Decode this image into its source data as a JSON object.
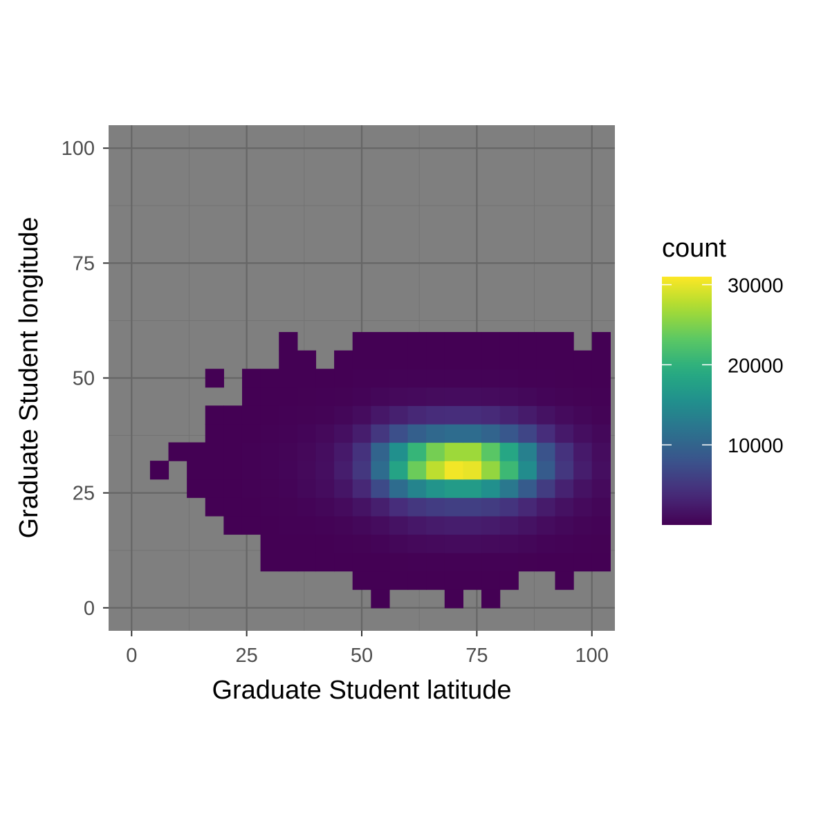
{
  "chart_data": {
    "type": "heatmap",
    "xlabel": "Graduate Student latitude",
    "ylabel": "Graduate Student longitude",
    "xlim": [
      -5,
      105
    ],
    "ylim": [
      -5,
      105
    ],
    "x_ticks": [
      0,
      25,
      50,
      75,
      100
    ],
    "y_ticks": [
      0,
      25,
      50,
      75,
      100
    ],
    "x_tick_labels": [
      "0",
      "25",
      "50",
      "75",
      "100"
    ],
    "y_tick_labels": [
      "0",
      "25",
      "50",
      "75",
      "100"
    ],
    "grid": true,
    "bin_width": 4,
    "bin_height": 4,
    "colorscale": "viridis",
    "legend": {
      "title": "count",
      "position": "right",
      "breaks": [
        10000,
        20000,
        30000
      ],
      "labels": [
        "10000",
        "20000",
        "30000"
      ],
      "range": [
        0,
        31000
      ]
    },
    "rows": [
      {
        "y": 2,
        "cells": [
          [
            54,
            1
          ],
          [
            70,
            1
          ],
          [
            78,
            1
          ]
        ]
      },
      {
        "y": 6,
        "cells": [
          [
            50,
            1
          ],
          [
            54,
            2
          ],
          [
            58,
            3
          ],
          [
            62,
            4
          ],
          [
            66,
            5
          ],
          [
            70,
            6
          ],
          [
            74,
            6
          ],
          [
            78,
            5
          ],
          [
            82,
            4
          ],
          [
            94,
            1
          ]
        ]
      },
      {
        "y": 10,
        "cells": [
          [
            30,
            1
          ],
          [
            34,
            2
          ],
          [
            38,
            3
          ],
          [
            42,
            5
          ],
          [
            46,
            8
          ],
          [
            50,
            15
          ],
          [
            54,
            30
          ],
          [
            58,
            50
          ],
          [
            62,
            70
          ],
          [
            66,
            90
          ],
          [
            70,
            100
          ],
          [
            74,
            100
          ],
          [
            78,
            90
          ],
          [
            82,
            70
          ],
          [
            86,
            50
          ],
          [
            90,
            30
          ],
          [
            94,
            20
          ],
          [
            98,
            10
          ],
          [
            102,
            5
          ]
        ]
      },
      {
        "y": 14,
        "cells": [
          [
            30,
            5
          ],
          [
            34,
            10
          ],
          [
            38,
            20
          ],
          [
            42,
            40
          ],
          [
            46,
            80
          ],
          [
            50,
            150
          ],
          [
            54,
            300
          ],
          [
            58,
            500
          ],
          [
            62,
            700
          ],
          [
            66,
            800
          ],
          [
            70,
            900
          ],
          [
            74,
            900
          ],
          [
            78,
            800
          ],
          [
            82,
            700
          ],
          [
            86,
            500
          ],
          [
            90,
            300
          ],
          [
            94,
            200
          ],
          [
            98,
            100
          ],
          [
            102,
            50
          ]
        ]
      },
      {
        "y": 18,
        "cells": [
          [
            22,
            5
          ],
          [
            26,
            10
          ],
          [
            30,
            30
          ],
          [
            34,
            60
          ],
          [
            38,
            120
          ],
          [
            42,
            200
          ],
          [
            46,
            350
          ],
          [
            50,
            600
          ],
          [
            54,
            1000
          ],
          [
            58,
            1500
          ],
          [
            62,
            2000
          ],
          [
            66,
            2300
          ],
          [
            70,
            2500
          ],
          [
            74,
            2500
          ],
          [
            78,
            2300
          ],
          [
            82,
            2000
          ],
          [
            86,
            1500
          ],
          [
            90,
            1000
          ],
          [
            94,
            600
          ],
          [
            98,
            350
          ],
          [
            102,
            200
          ]
        ]
      },
      {
        "y": 22,
        "cells": [
          [
            18,
            1
          ],
          [
            22,
            10
          ],
          [
            26,
            30
          ],
          [
            30,
            60
          ],
          [
            34,
            150
          ],
          [
            38,
            300
          ],
          [
            42,
            500
          ],
          [
            46,
            900
          ],
          [
            50,
            1600
          ],
          [
            54,
            2700
          ],
          [
            58,
            4000
          ],
          [
            62,
            5000
          ],
          [
            66,
            5600
          ],
          [
            70,
            5900
          ],
          [
            74,
            5900
          ],
          [
            78,
            5500
          ],
          [
            82,
            4700
          ],
          [
            86,
            3500
          ],
          [
            90,
            2300
          ],
          [
            94,
            1400
          ],
          [
            98,
            800
          ],
          [
            102,
            450
          ]
        ]
      },
      {
        "y": 26,
        "cells": [
          [
            14,
            1
          ],
          [
            18,
            5
          ],
          [
            22,
            20
          ],
          [
            26,
            60
          ],
          [
            30,
            150
          ],
          [
            34,
            300
          ],
          [
            38,
            600
          ],
          [
            42,
            1000
          ],
          [
            46,
            1800
          ],
          [
            50,
            3500
          ],
          [
            54,
            7000
          ],
          [
            58,
            11000
          ],
          [
            62,
            14000
          ],
          [
            66,
            16000
          ],
          [
            70,
            17000
          ],
          [
            74,
            17000
          ],
          [
            78,
            15500
          ],
          [
            82,
            12500
          ],
          [
            86,
            9000
          ],
          [
            90,
            5500
          ],
          [
            94,
            3000
          ],
          [
            98,
            1500
          ],
          [
            102,
            800
          ]
        ]
      },
      {
        "y": 30,
        "cells": [
          [
            6,
            1
          ],
          [
            14,
            2
          ],
          [
            18,
            10
          ],
          [
            22,
            30
          ],
          [
            26,
            80
          ],
          [
            30,
            200
          ],
          [
            34,
            400
          ],
          [
            38,
            700
          ],
          [
            42,
            1200
          ],
          [
            46,
            2500
          ],
          [
            50,
            5000
          ],
          [
            54,
            11000
          ],
          [
            58,
            18000
          ],
          [
            62,
            24000
          ],
          [
            66,
            28000
          ],
          [
            70,
            30500
          ],
          [
            74,
            30000
          ],
          [
            78,
            26000
          ],
          [
            82,
            21000
          ],
          [
            86,
            15000
          ],
          [
            90,
            9000
          ],
          [
            94,
            5000
          ],
          [
            98,
            2500
          ],
          [
            102,
            1200
          ]
        ]
      },
      {
        "y": 34,
        "cells": [
          [
            10,
            1
          ],
          [
            14,
            2
          ],
          [
            18,
            8
          ],
          [
            22,
            25
          ],
          [
            26,
            70
          ],
          [
            30,
            180
          ],
          [
            34,
            350
          ],
          [
            38,
            650
          ],
          [
            42,
            1100
          ],
          [
            46,
            2200
          ],
          [
            50,
            4500
          ],
          [
            54,
            10000
          ],
          [
            58,
            15500
          ],
          [
            62,
            20500
          ],
          [
            66,
            24500
          ],
          [
            70,
            26500
          ],
          [
            74,
            26500
          ],
          [
            78,
            23000
          ],
          [
            82,
            18500
          ],
          [
            86,
            13500
          ],
          [
            90,
            8000
          ],
          [
            94,
            4500
          ],
          [
            98,
            2200
          ],
          [
            102,
            1000
          ]
        ]
      },
      {
        "y": 38,
        "cells": [
          [
            18,
            5
          ],
          [
            22,
            15
          ],
          [
            26,
            40
          ],
          [
            30,
            100
          ],
          [
            34,
            200
          ],
          [
            38,
            400
          ],
          [
            42,
            700
          ],
          [
            46,
            1300
          ],
          [
            50,
            2500
          ],
          [
            54,
            5000
          ],
          [
            58,
            7500
          ],
          [
            62,
            9500
          ],
          [
            66,
            10500
          ],
          [
            70,
            11000
          ],
          [
            74,
            11000
          ],
          [
            78,
            10000
          ],
          [
            82,
            8500
          ],
          [
            86,
            6500
          ],
          [
            90,
            4000
          ],
          [
            94,
            2200
          ],
          [
            98,
            1200
          ],
          [
            102,
            600
          ]
        ]
      },
      {
        "y": 42,
        "cells": [
          [
            18,
            2
          ],
          [
            22,
            8
          ],
          [
            26,
            20
          ],
          [
            30,
            40
          ],
          [
            34,
            80
          ],
          [
            38,
            150
          ],
          [
            42,
            250
          ],
          [
            46,
            500
          ],
          [
            50,
            1000
          ],
          [
            54,
            2000
          ],
          [
            58,
            2800
          ],
          [
            62,
            3500
          ],
          [
            66,
            3900
          ],
          [
            70,
            4000
          ],
          [
            74,
            4000
          ],
          [
            78,
            3700
          ],
          [
            82,
            3100
          ],
          [
            86,
            2300
          ],
          [
            90,
            1500
          ],
          [
            94,
            900
          ],
          [
            98,
            500
          ],
          [
            102,
            250
          ]
        ]
      },
      {
        "y": 46,
        "cells": [
          [
            26,
            5
          ],
          [
            30,
            15
          ],
          [
            34,
            30
          ],
          [
            38,
            50
          ],
          [
            42,
            80
          ],
          [
            46,
            150
          ],
          [
            50,
            300
          ],
          [
            54,
            500
          ],
          [
            58,
            700
          ],
          [
            62,
            850
          ],
          [
            66,
            950
          ],
          [
            70,
            1000
          ],
          [
            74,
            1000
          ],
          [
            78,
            900
          ],
          [
            82,
            800
          ],
          [
            86,
            600
          ],
          [
            90,
            400
          ],
          [
            94,
            250
          ],
          [
            98,
            150
          ],
          [
            102,
            80
          ]
        ]
      },
      {
        "y": 50,
        "cells": [
          [
            18,
            1
          ],
          [
            26,
            2
          ],
          [
            30,
            5
          ],
          [
            34,
            10
          ],
          [
            38,
            15
          ],
          [
            42,
            20
          ],
          [
            46,
            40
          ],
          [
            50,
            80
          ],
          [
            54,
            120
          ],
          [
            58,
            160
          ],
          [
            62,
            180
          ],
          [
            66,
            200
          ],
          [
            70,
            210
          ],
          [
            74,
            210
          ],
          [
            78,
            190
          ],
          [
            82,
            160
          ],
          [
            86,
            120
          ],
          [
            90,
            80
          ],
          [
            94,
            50
          ],
          [
            98,
            30
          ],
          [
            102,
            15
          ]
        ]
      },
      {
        "y": 54,
        "cells": [
          [
            34,
            1
          ],
          [
            38,
            2
          ],
          [
            46,
            5
          ],
          [
            50,
            10
          ],
          [
            54,
            20
          ],
          [
            58,
            25
          ],
          [
            62,
            30
          ],
          [
            66,
            35
          ],
          [
            70,
            35
          ],
          [
            74,
            30
          ],
          [
            78,
            25
          ],
          [
            82,
            20
          ],
          [
            86,
            15
          ],
          [
            90,
            10
          ],
          [
            94,
            5
          ],
          [
            98,
            3
          ],
          [
            102,
            2
          ]
        ]
      },
      {
        "y": 58,
        "cells": [
          [
            34,
            1
          ],
          [
            50,
            1
          ],
          [
            54,
            2
          ],
          [
            58,
            3
          ],
          [
            62,
            4
          ],
          [
            66,
            5
          ],
          [
            70,
            5
          ],
          [
            74,
            4
          ],
          [
            78,
            3
          ],
          [
            82,
            2
          ],
          [
            86,
            2
          ],
          [
            90,
            1
          ],
          [
            94,
            1
          ],
          [
            102,
            1
          ]
        ]
      }
    ]
  }
}
